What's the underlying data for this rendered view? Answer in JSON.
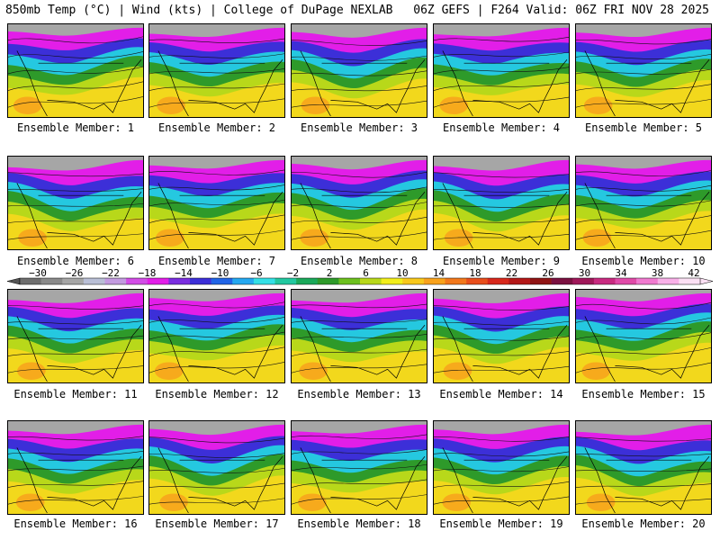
{
  "header": {
    "left_title": "850mb Temp (°C) | Wind (kts) | College of DuPage NEXLAB",
    "right_title": "06Z GEFS | F264 Valid: 06Z FRI NOV 28 2025"
  },
  "panels": [
    {
      "label": "Ensemble Member: 1"
    },
    {
      "label": "Ensemble Member: 2"
    },
    {
      "label": "Ensemble Member: 3"
    },
    {
      "label": "Ensemble Member: 4"
    },
    {
      "label": "Ensemble Member: 5"
    },
    {
      "label": "Ensemble Member: 6"
    },
    {
      "label": "Ensemble Member: 7"
    },
    {
      "label": "Ensemble Member: 8"
    },
    {
      "label": "Ensemble Member: 9"
    },
    {
      "label": "Ensemble Member: 10"
    },
    {
      "label": "Ensemble Member: 11"
    },
    {
      "label": "Ensemble Member: 12"
    },
    {
      "label": "Ensemble Member: 13"
    },
    {
      "label": "Ensemble Member: 14"
    },
    {
      "label": "Ensemble Member: 15"
    },
    {
      "label": "Ensemble Member: 16"
    },
    {
      "label": "Ensemble Member: 17"
    },
    {
      "label": "Ensemble Member: 18"
    },
    {
      "label": "Ensemble Member: 19"
    },
    {
      "label": "Ensemble Member: 20"
    }
  ],
  "colorbar": {
    "ticks": [
      "−30",
      "−26",
      "−22",
      "−18",
      "−14",
      "−10",
      "−6",
      "−2",
      "2",
      "6",
      "10",
      "14",
      "18",
      "22",
      "26",
      "30",
      "34",
      "38",
      "42"
    ],
    "colors": [
      "#6e6e6e",
      "#8a8a8a",
      "#a6a6a6",
      "#b9bfd6",
      "#c39be0",
      "#d24de6",
      "#e21ee8",
      "#7a2ee0",
      "#3c2fd8",
      "#2164e6",
      "#25a8f0",
      "#34e0e6",
      "#22c8a0",
      "#1aa85a",
      "#2e9a2a",
      "#6cc01e",
      "#b8d81a",
      "#f2ee1c",
      "#f8c81c",
      "#f8a21c",
      "#f2781c",
      "#e84e1c",
      "#d8281c",
      "#b41818",
      "#901414",
      "#7a1040",
      "#a0185a",
      "#c82a80",
      "#e04aa8",
      "#f07ad0",
      "#f8b0e8",
      "#fbe0f4"
    ]
  }
}
